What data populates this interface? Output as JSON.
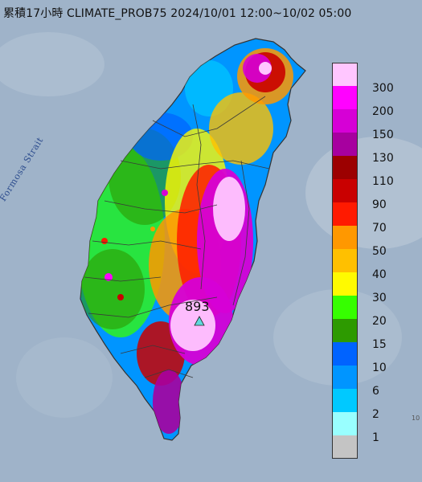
{
  "map": {
    "title": "累積17小時 CLIMATE_PROB75 2024/10/01 12:00~10/02 05:00",
    "strait_label": "Formosa Strait",
    "peak_value": "893",
    "corner_text": "10"
  },
  "legend": {
    "items": [
      {
        "label": "300",
        "color": "#ffc6ff"
      },
      {
        "label": "200",
        "color": "#ff02ff"
      },
      {
        "label": "150",
        "color": "#d600d6"
      },
      {
        "label": "130",
        "color": "#a7009f"
      },
      {
        "label": "110",
        "color": "#9c0000"
      },
      {
        "label": "90",
        "color": "#c90000"
      },
      {
        "label": "70",
        "color": "#ff1a00"
      },
      {
        "label": "50",
        "color": "#ff9800"
      },
      {
        "label": "40",
        "color": "#ffc000"
      },
      {
        "label": "30",
        "color": "#fffa00"
      },
      {
        "label": "20",
        "color": "#36ff00"
      },
      {
        "label": "15",
        "color": "#2d9a00"
      },
      {
        "label": "10",
        "color": "#0063ff"
      },
      {
        "label": "6",
        "color": "#0095ff"
      },
      {
        "label": "2",
        "color": "#00c9ff"
      },
      {
        "label": "1",
        "color": "#99ffff"
      },
      {
        "label": "",
        "color": "#c4c4c4"
      }
    ]
  },
  "colors": {
    "sea": "#9fb3c9",
    "marker": "#5fd8dc",
    "boundary": "#3a3a3a"
  }
}
